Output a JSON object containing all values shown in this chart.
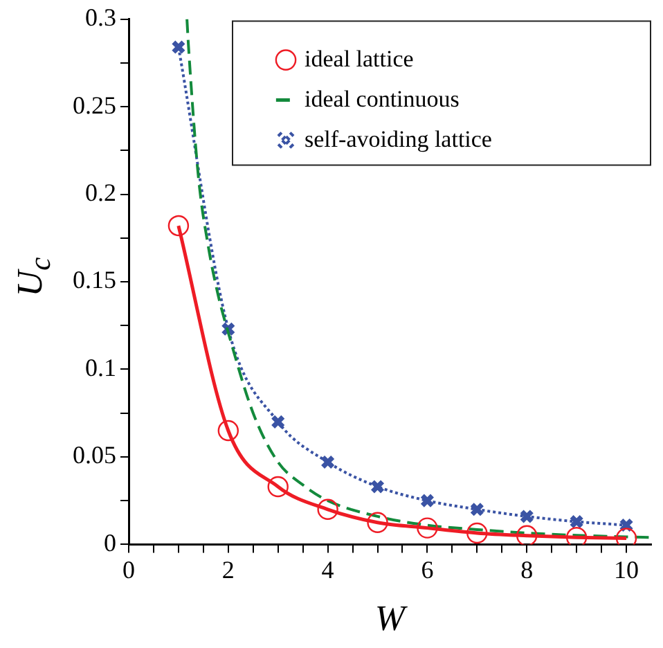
{
  "chart_data": {
    "type": "line",
    "xlabel": "W",
    "ylabel": "U$_{c}$",
    "xlim": [
      0,
      10.5
    ],
    "ylim": [
      0,
      0.3
    ],
    "xticks": [
      0,
      {
        "value": 0.5,
        "label": null
      },
      {
        "value": 1,
        "label": null
      },
      {
        "value": 1.5,
        "label": null
      },
      2,
      {
        "value": 2.5,
        "label": null
      },
      {
        "value": 3,
        "label": null
      },
      {
        "value": 3.5,
        "label": null
      },
      4,
      {
        "value": 4.5,
        "label": null
      },
      {
        "value": 5,
        "label": null
      },
      {
        "value": 5.5,
        "label": null
      },
      6,
      {
        "value": 6.5,
        "label": null
      },
      {
        "value": 7,
        "label": null
      },
      {
        "value": 7.5,
        "label": null
      },
      8,
      {
        "value": 8.5,
        "label": null
      },
      {
        "value": 9,
        "label": null
      },
      {
        "value": 9.5,
        "label": null
      },
      10
    ],
    "yticks": [
      0,
      {
        "value": 0.025,
        "label": null
      },
      0.05,
      {
        "value": 0.075,
        "label": null
      },
      0.1,
      {
        "value": 0.125,
        "label": null
      },
      0.15,
      {
        "value": 0.175,
        "label": null
      },
      0.2,
      {
        "value": 0.225,
        "label": null
      },
      0.25,
      {
        "value": 0.275,
        "label": null
      },
      0.3
    ],
    "grid": false,
    "legend": "top right",
    "series": [
      {
        "name": "ideal lattice",
        "color": "#ee1c25",
        "type": "line",
        "marker": "circle",
        "line_style": "solid",
        "x": [
          1,
          2,
          3,
          4,
          5,
          6,
          7,
          8,
          9,
          10
        ],
        "values": [
          0.182,
          0.065,
          0.033,
          0.02,
          0.0125,
          0.0094,
          0.0065,
          0.005,
          0.004,
          0.0035
        ]
      },
      {
        "name": "ideal continuous",
        "color": "#138a3c",
        "type": "line",
        "marker": "none",
        "line_style": "dashed",
        "x": [
          1.17,
          1.2,
          1.4,
          1.6,
          1.8,
          2,
          2.5,
          3,
          3.5,
          4,
          5,
          6,
          7,
          8,
          9,
          10,
          10.5
        ],
        "values": [
          0.3,
          0.285,
          0.21,
          0.17,
          0.142,
          0.121,
          0.075,
          0.047,
          0.034,
          0.025,
          0.016,
          0.011,
          0.0085,
          0.0065,
          0.0052,
          0.0043,
          0.004
        ]
      },
      {
        "name": "self-avoiding lattice",
        "color": "#3a53a4",
        "type": "line",
        "marker": "cross",
        "line_style": "dotted",
        "x": [
          1,
          2,
          3,
          4,
          5,
          6,
          7,
          8,
          9,
          10
        ],
        "values": [
          0.284,
          0.123,
          0.07,
          0.047,
          0.033,
          0.025,
          0.02,
          0.016,
          0.013,
          0.011
        ]
      }
    ]
  }
}
